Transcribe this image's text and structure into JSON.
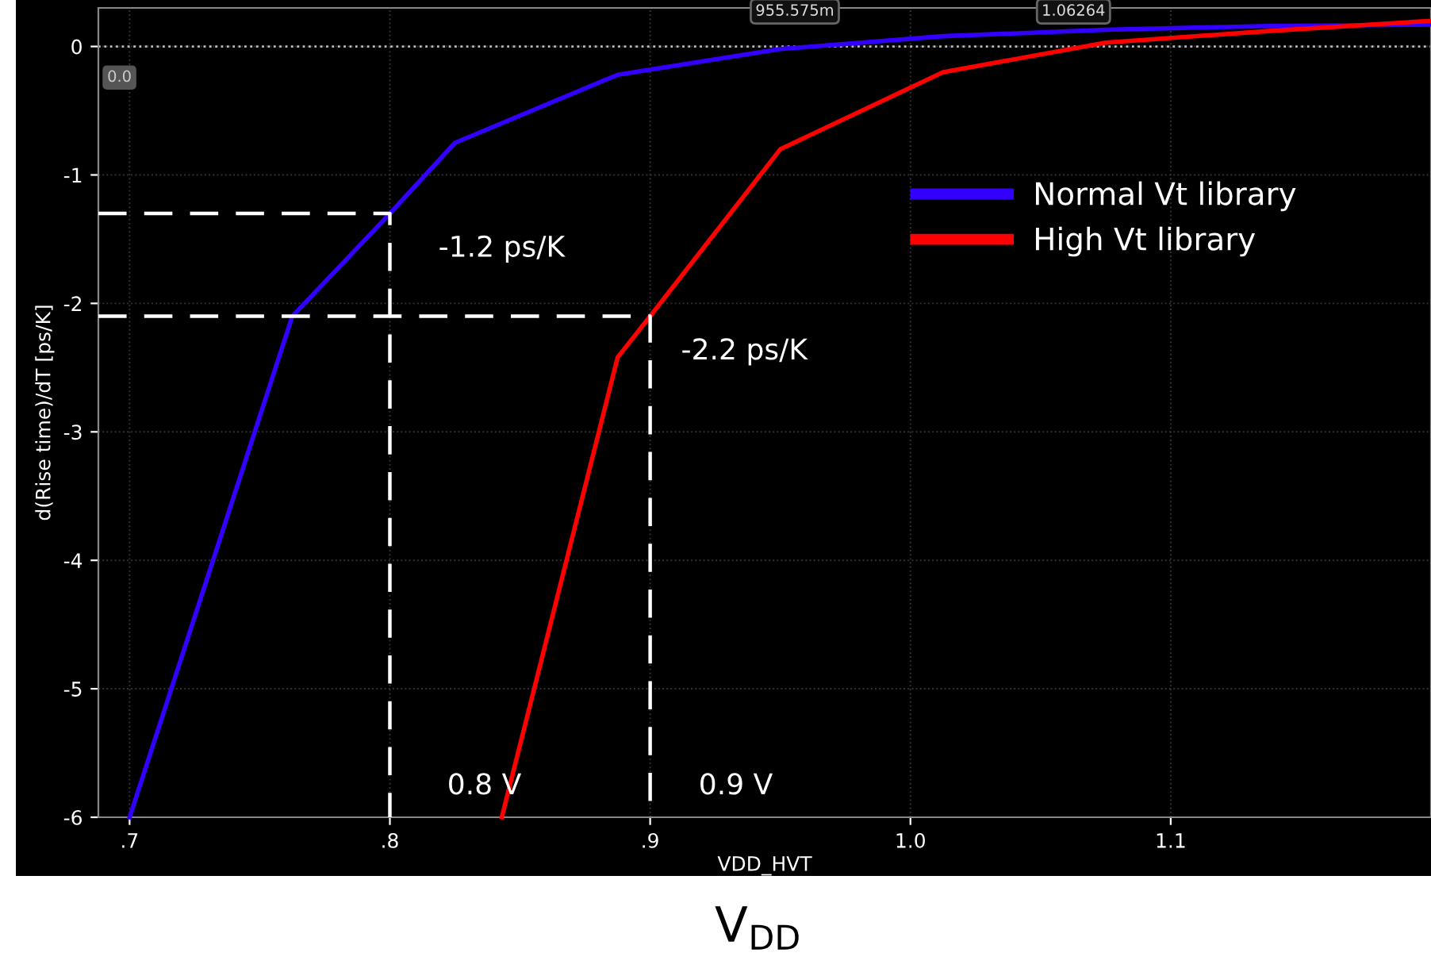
{
  "chart_data": {
    "type": "line",
    "xlabel": "VDD_HVT",
    "ylabel": "d(Rise time)/dT [ps/K]",
    "xlim": [
      0.688,
      1.2
    ],
    "ylim": [
      -6,
      0.3
    ],
    "xticks": [
      {
        "value": 0.7,
        "label": ".7"
      },
      {
        "value": 0.8,
        "label": ".8"
      },
      {
        "value": 0.9,
        "label": ".9"
      },
      {
        "value": 1.0,
        "label": "1.0"
      },
      {
        "value": 1.1,
        "label": "1.1"
      }
    ],
    "yticks": [
      -6,
      -5,
      -4,
      -3,
      -2,
      -1,
      0
    ],
    "grid": true,
    "legend": "top right",
    "line_style": "solid",
    "series": [
      {
        "name": "Normal Vt library",
        "color": "#3300ff",
        "x": [
          0.7,
          0.7625,
          0.8,
          0.825,
          0.8875,
          0.95,
          1.0125,
          1.075,
          1.1375,
          1.2
        ],
        "values": [
          -6,
          -2.1,
          -1.3,
          -0.75,
          -0.22,
          -0.02,
          0.08,
          0.13,
          0.16,
          0.17
        ]
      },
      {
        "name": "High Vt library",
        "color": "#ff0000",
        "x": [
          0.843,
          0.8875,
          0.9,
          0.95,
          1.0125,
          1.075,
          1.1375,
          1.2
        ],
        "values": [
          -6,
          -2.42,
          -2.1,
          -0.8,
          -0.2,
          0.03,
          0.12,
          0.2
        ]
      },
      {
        "color": "#ffffff",
        "line_style": "dashed",
        "x": [
          0.688,
          0.8,
          0.8
        ],
        "values": [
          -1.3,
          -1.3,
          -6
        ]
      },
      {
        "color": "#ffffff",
        "line_style": "dashed",
        "x": [
          0.688,
          0.9,
          0.9
        ],
        "values": [
          -2.1,
          -2.1,
          -6
        ]
      }
    ],
    "ref_lines": [
      {
        "axis": "y",
        "value": 0,
        "label": "0.0",
        "color": "#bbbbbb",
        "line_style": "dotted"
      }
    ],
    "annotations": [
      {
        "text": "-1.2 ps/K",
        "x": 0.8,
        "y": -1.3
      },
      {
        "text": "-2.2 ps/K",
        "x": 0.9,
        "y": -2.1
      },
      {
        "text": "0.8 V",
        "x": 0.8,
        "y": -6
      },
      {
        "text": "0.9 V",
        "x": 0.9,
        "y": -6
      },
      {
        "text": "955.575m",
        "x": 0.955575,
        "y": 0
      },
      {
        "text": "1.06264",
        "x": 1.06264,
        "y": 0
      },
      "V$_{DD}$"
    ]
  }
}
